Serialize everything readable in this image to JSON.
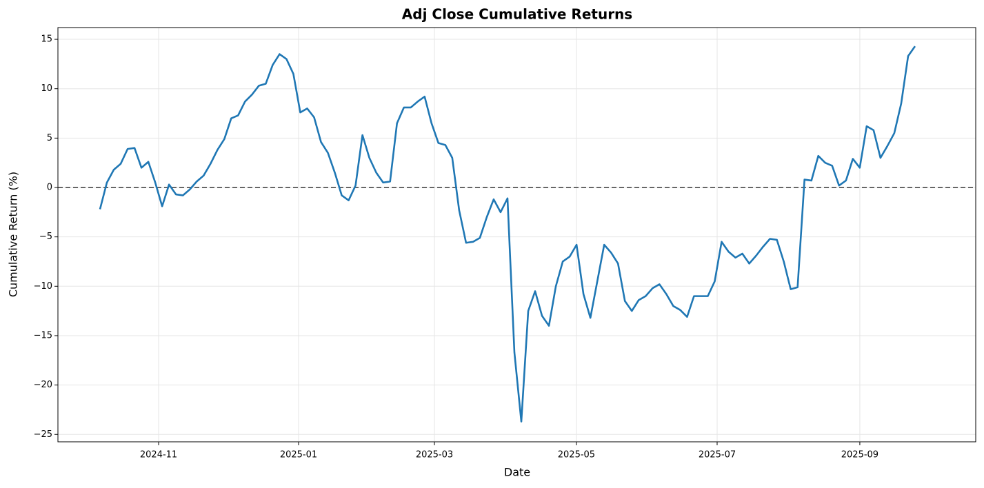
{
  "chart_data": {
    "type": "line",
    "title": "Adj Close Cumulative Returns",
    "x_label": "Date",
    "y_label": "Cumulative Return (%)",
    "series": [
      {
        "name": "Adj Close",
        "color": "#1f77b4",
        "values": [
          -2.2,
          0.5,
          1.8,
          2.4,
          3.9,
          4.0,
          2.0,
          2.6,
          0.5,
          -1.9,
          0.3,
          -0.7,
          -0.8,
          -0.2,
          0.6,
          1.2,
          2.4,
          3.8,
          4.9,
          7.0,
          7.3,
          8.7,
          9.4,
          10.3,
          10.5,
          12.4,
          13.5,
          13.0,
          11.5,
          7.6,
          8.0,
          7.1,
          4.6,
          3.5,
          1.5,
          -0.8,
          -1.3,
          0.2,
          5.3,
          3.0,
          1.5,
          0.5,
          0.6,
          6.5,
          8.1,
          8.1,
          8.7,
          9.2,
          6.5,
          4.5,
          4.3,
          3.0,
          -2.3,
          -5.6,
          -5.5,
          -5.1,
          -3.0,
          -1.2,
          -2.5,
          -1.1,
          -16.7,
          -23.7,
          -12.5,
          -10.5,
          -13.0,
          -14.0,
          -10.0,
          -7.5,
          -7.0,
          -5.8,
          -10.8,
          -13.2,
          -9.5,
          -5.8,
          -6.6,
          -7.7,
          -11.5,
          -12.5,
          -11.4,
          -11.0,
          -10.2,
          -9.8,
          -10.8,
          -12.0,
          -12.4,
          -13.1,
          -11.0,
          -11.0,
          -11.0,
          -9.5,
          -5.5,
          -6.5,
          -7.1,
          -6.7,
          -7.7,
          -6.9,
          -6.0,
          -5.2,
          -5.3,
          -7.5,
          -10.3,
          -10.1,
          0.8,
          0.7,
          3.2,
          2.5,
          2.2,
          0.2,
          0.7,
          2.9,
          2.0,
          6.2,
          5.8,
          3.0,
          4.2,
          5.5,
          8.5,
          13.3,
          14.3
        ]
      }
    ],
    "xlim": [
      -6.09,
      126.79
    ],
    "xticks": [
      {
        "value": 8.49,
        "label": "2024-11"
      },
      {
        "value": 28.75,
        "label": "2025-01"
      },
      {
        "value": 48.42,
        "label": "2025-03"
      },
      {
        "value": 68.98,
        "label": "2025-05"
      },
      {
        "value": 89.35,
        "label": "2025-07"
      },
      {
        "value": 110.01,
        "label": "2025-09"
      }
    ],
    "ylim": [
      -25.75,
      16.19
    ],
    "yticks": [
      {
        "value": -25,
        "label": "−25"
      },
      {
        "value": -20,
        "label": "−20"
      },
      {
        "value": -15,
        "label": "−15"
      },
      {
        "value": -10,
        "label": "−10"
      },
      {
        "value": -5,
        "label": "−5"
      },
      0,
      5,
      10,
      15
    ],
    "grid": true,
    "hline": {
      "y": 0,
      "color": "#666666",
      "style": "dashed"
    }
  }
}
